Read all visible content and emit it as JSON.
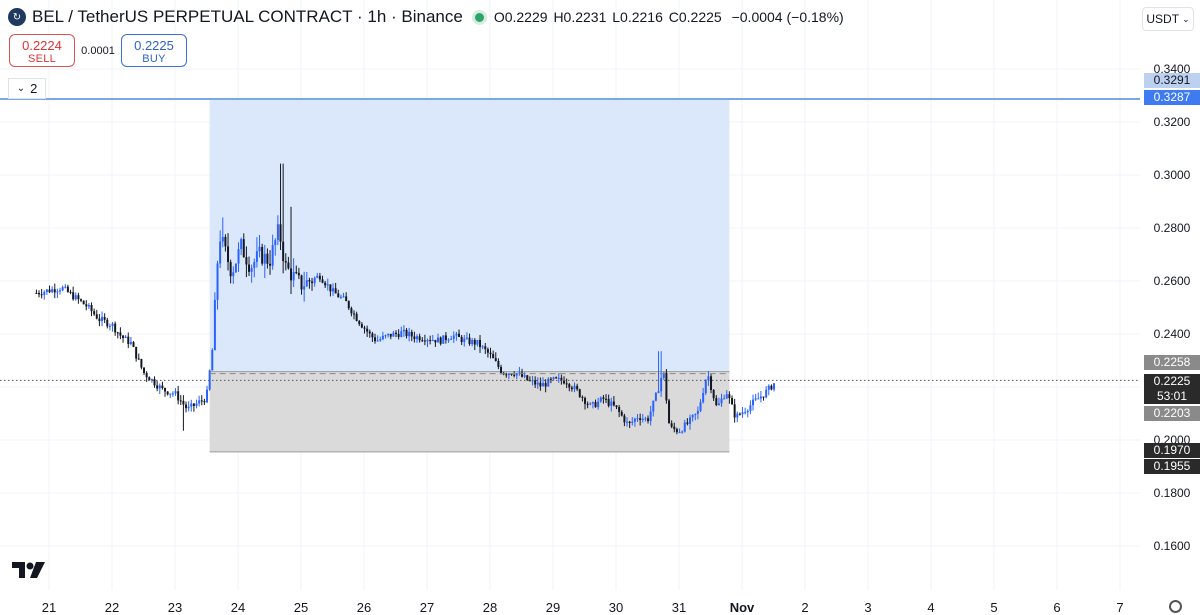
{
  "header": {
    "symbol_title": "BEL / TetherUS PERPETUAL CONTRACT · 1h · Binance",
    "ohlc": {
      "open": "O0.2229",
      "high": "H0.2231",
      "low": "L0.2216",
      "close": "C0.2225"
    },
    "change": "−0.0004 (−0.18%)"
  },
  "trade": {
    "sell_price": "0.2224",
    "sell_label": "SELL",
    "spread": "0.0001",
    "buy_price": "0.2225",
    "buy_label": "BUY"
  },
  "indicator_counter": "2",
  "currency_selector": "USDT",
  "colors": {
    "up": "#2962ff",
    "down": "#131722",
    "profit_zone": "#dbe8fb",
    "loss_zone": "#d6d6d6",
    "target_line": "#7aa7e6"
  },
  "chart_data": {
    "type": "candlestick",
    "y_range": [
      0.15,
      0.344
    ],
    "y_ticks": [
      "0.3400",
      "0.3200",
      "0.3000",
      "0.2800",
      "0.2600",
      "0.2400",
      "0.2000",
      "0.1800",
      "0.1600"
    ],
    "x_ticks": [
      "21",
      "22",
      "23",
      "24",
      "25",
      "26",
      "27",
      "28",
      "29",
      "30",
      "31",
      "Nov",
      "2",
      "3",
      "4",
      "5",
      "6",
      "7"
    ],
    "x_day_start": 20.8,
    "x_day_end": 32.55,
    "price_labels": [
      {
        "value": "0.3291",
        "style": "light-blue"
      },
      {
        "value": "0.3287",
        "style": "blue"
      },
      {
        "value": "0.2258",
        "style": "grey"
      },
      {
        "value": "0.2225",
        "style": "dark"
      },
      {
        "value": "53:01",
        "style": "dark"
      },
      {
        "value": "0.2203",
        "style": "grey"
      },
      {
        "value": "0.1970",
        "style": "dark"
      },
      {
        "value": "0.1955",
        "style": "dark"
      }
    ],
    "position": {
      "start_day": 23.55,
      "end_day": 31.8,
      "target": 0.3287,
      "entry": 0.2258,
      "stop": 0.1955,
      "current": 0.2225
    },
    "price_path": [
      [
        20.8,
        0.2555
      ],
      [
        21.2,
        0.2575
      ],
      [
        21.4,
        0.254
      ],
      [
        21.6,
        0.2505
      ],
      [
        21.8,
        0.2455
      ],
      [
        22.0,
        0.2435
      ],
      [
        22.15,
        0.239
      ],
      [
        22.3,
        0.2365
      ],
      [
        22.5,
        0.2255
      ],
      [
        22.8,
        0.219
      ],
      [
        23.0,
        0.2175
      ],
      [
        23.2,
        0.2115
      ],
      [
        23.4,
        0.2145
      ],
      [
        23.5,
        0.216
      ],
      [
        23.6,
        0.2355
      ],
      [
        23.7,
        0.278
      ],
      [
        23.9,
        0.2635
      ],
      [
        24.05,
        0.273
      ],
      [
        24.2,
        0.2655
      ],
      [
        24.35,
        0.27
      ],
      [
        24.5,
        0.2675
      ],
      [
        24.65,
        0.2795
      ],
      [
        24.75,
        0.2655
      ],
      [
        24.85,
        0.2625
      ],
      [
        25.0,
        0.2585
      ],
      [
        25.3,
        0.262
      ],
      [
        25.5,
        0.256
      ],
      [
        25.7,
        0.2525
      ],
      [
        25.9,
        0.2455
      ],
      [
        26.1,
        0.2395
      ],
      [
        26.2,
        0.2375
      ],
      [
        26.4,
        0.2395
      ],
      [
        26.6,
        0.2405
      ],
      [
        26.8,
        0.239
      ],
      [
        27.0,
        0.2385
      ],
      [
        27.2,
        0.2375
      ],
      [
        27.4,
        0.2395
      ],
      [
        27.6,
        0.2375
      ],
      [
        27.8,
        0.2365
      ],
      [
        28.0,
        0.232
      ],
      [
        28.2,
        0.2255
      ],
      [
        28.4,
        0.2255
      ],
      [
        28.6,
        0.2225
      ],
      [
        28.8,
        0.2205
      ],
      [
        29.0,
        0.2225
      ],
      [
        29.2,
        0.2225
      ],
      [
        29.4,
        0.218
      ],
      [
        29.6,
        0.2125
      ],
      [
        29.8,
        0.2155
      ],
      [
        30.0,
        0.212
      ],
      [
        30.2,
        0.2055
      ],
      [
        30.35,
        0.209
      ],
      [
        30.5,
        0.2075
      ],
      [
        30.65,
        0.2175
      ],
      [
        30.75,
        0.2265
      ],
      [
        30.85,
        0.2045
      ],
      [
        31.0,
        0.2035
      ],
      [
        31.15,
        0.2065
      ],
      [
        31.3,
        0.2105
      ],
      [
        31.45,
        0.2255
      ],
      [
        31.6,
        0.212
      ],
      [
        31.75,
        0.2185
      ],
      [
        31.9,
        0.2085
      ],
      [
        32.05,
        0.2115
      ],
      [
        32.2,
        0.2145
      ],
      [
        32.4,
        0.2185
      ],
      [
        32.55,
        0.2225
      ]
    ],
    "spikes": [
      {
        "day": 24.7,
        "high": 0.3043
      },
      {
        "day": 24.85,
        "high": 0.288
      },
      {
        "day": 23.75,
        "high": 0.284
      },
      {
        "day": 30.7,
        "high": 0.2335
      },
      {
        "day": 23.15,
        "low": 0.2035
      }
    ]
  }
}
